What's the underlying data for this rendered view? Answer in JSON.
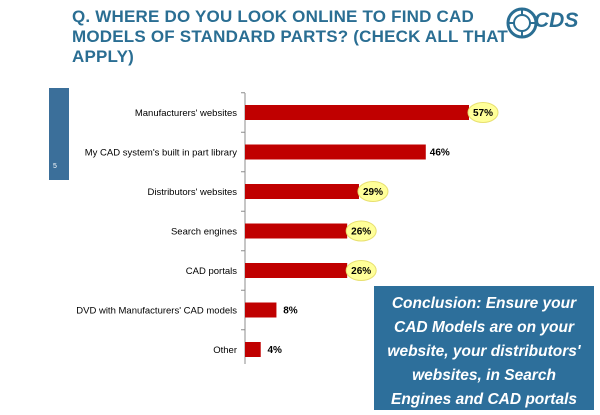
{
  "title": "Q. WHERE DO YOU LOOK ONLINE TO FIND CAD MODELS OF STANDARD PARTS? (CHECK ALL THAT APPLY)",
  "logo_text": "CDS",
  "slide_number": "5",
  "conclusion": "Conclusion: Ensure  your CAD Models are on your website, your distributors' websites, in  Search Engines and CAD portals",
  "colors": {
    "bar": "#c00000",
    "highlight": "#ffff99",
    "title": "#2a6e93",
    "panel": "#2d6f9b"
  },
  "chart_data": {
    "type": "bar",
    "orientation": "horizontal",
    "categories": [
      "Manufacturers' websites",
      "My CAD system's built in part library",
      "Distributors' websites",
      "Search engines",
      "CAD portals",
      "DVD with Manufacturers' CAD models",
      "Other"
    ],
    "values": [
      57,
      46,
      29,
      26,
      26,
      8,
      4
    ],
    "labels": [
      "57%",
      "46%",
      "29%",
      "26%",
      "26%",
      "8%",
      "4%"
    ],
    "highlighted": [
      true,
      false,
      true,
      true,
      true,
      false,
      false
    ],
    "unit": "%",
    "xlim": [
      0,
      60
    ],
    "grid": false,
    "legend": "none"
  }
}
